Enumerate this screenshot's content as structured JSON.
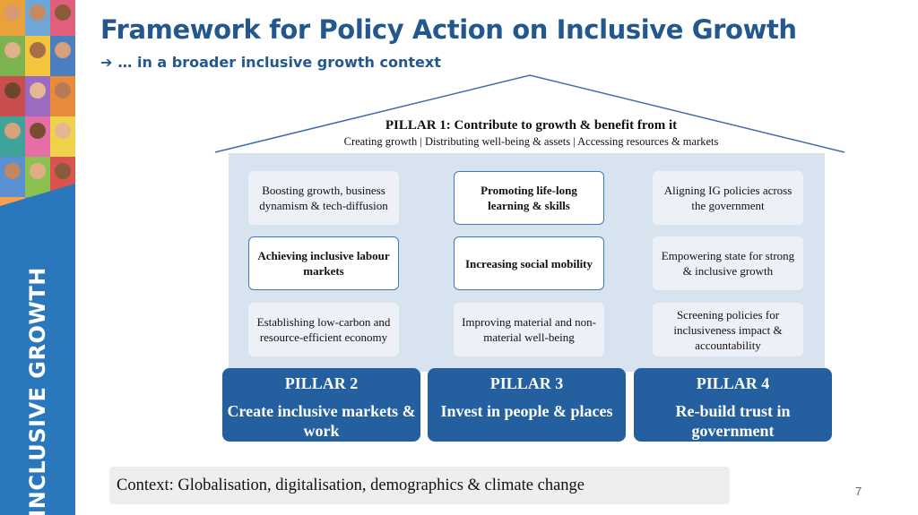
{
  "sidebar": {
    "label": "INCLUSIVE GROWTH"
  },
  "header": {
    "title": "Framework for Policy Action on Inclusive Growth",
    "subtitle_arrow": "➔",
    "subtitle": "… in a broader inclusive growth context"
  },
  "pillar1": {
    "title": "PILLAR 1: Contribute to growth & benefit from it",
    "subtitle": "Creating growth | Distributing well-being & assets | Accessing resources & markets"
  },
  "boxes": [
    {
      "text": "Boosting growth, business dynamism & tech-diffusion",
      "highlighted": false
    },
    {
      "text": "Promoting life-long learning & skills",
      "highlighted": true
    },
    {
      "text": "Aligning IG policies across the government",
      "highlighted": false
    },
    {
      "text": "Achieving inclusive labour markets",
      "highlighted": true
    },
    {
      "text": "Increasing social mobility",
      "highlighted": true
    },
    {
      "text": "Empowering state for strong & inclusive growth",
      "highlighted": false
    },
    {
      "text": "Establishing low-carbon and resource-efficient economy",
      "highlighted": false
    },
    {
      "text": "Improving material and non-material well-being",
      "highlighted": false
    },
    {
      "text": "Screening policies for inclusiveness impact & accountability",
      "highlighted": false
    }
  ],
  "pillars": [
    {
      "name": "PILLAR 2",
      "desc": "Create inclusive markets & work"
    },
    {
      "name": "PILLAR 3",
      "desc": "Invest in people & places"
    },
    {
      "name": "PILLAR 4",
      "desc": "Re-build trust in government"
    }
  ],
  "context": "Context: Globalisation, digitalisation, demographics & climate change",
  "page_number": "7",
  "colors": {
    "title": "#23588f",
    "pillar": "#2460a0",
    "house": "#d8e3f0",
    "sidebar": "#2a78bb"
  }
}
